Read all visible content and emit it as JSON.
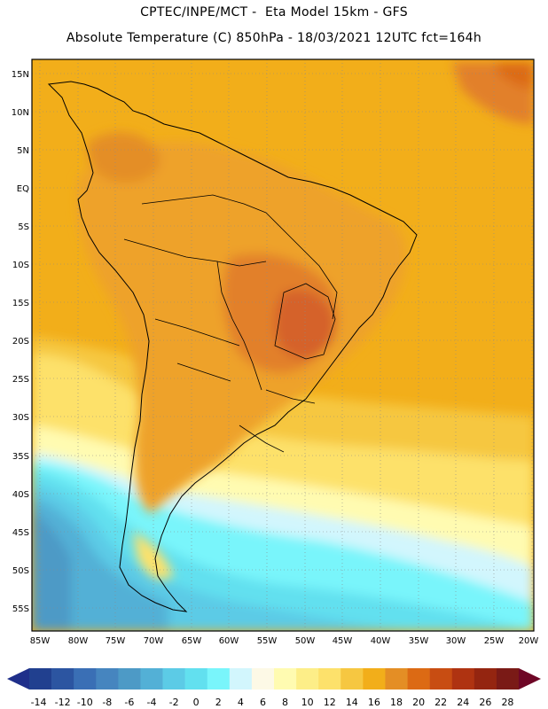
{
  "header": {
    "line1": "CPTEC/INPE/MCT -  Eta Model 15km - GFS",
    "line2": "Absolute Temperature (C) 850hPa - 18/03/2021 12UTC fct=164h"
  },
  "map": {
    "lat_labels": [
      "15N",
      "10N",
      "5N",
      "EQ",
      "5S",
      "10S",
      "15S",
      "20S",
      "25S",
      "30S",
      "35S",
      "40S",
      "45S",
      "50S",
      "55S"
    ],
    "lon_labels": [
      "85W",
      "80W",
      "75W",
      "70W",
      "65W",
      "60W",
      "55W",
      "50W",
      "45W",
      "40W",
      "35W",
      "30W",
      "25W",
      "20W"
    ],
    "colors": {
      "ocean_warm": "#f2ae1a",
      "land_warm": "#eea22a",
      "hot": "#e2802a",
      "hottest": "#d5622a"
    }
  },
  "colorbar": {
    "labels": [
      "-14",
      "-12",
      "-10",
      "-8",
      "-6",
      "-4",
      "-2",
      "0",
      "2",
      "4",
      "6",
      "8",
      "10",
      "12",
      "14",
      "16",
      "18",
      "20",
      "22",
      "24",
      "26",
      "28"
    ],
    "colors": [
      "#21408f",
      "#2c55a1",
      "#3a6fb5",
      "#4685bf",
      "#4d9ac6",
      "#53b0d6",
      "#5ccbe6",
      "#62e0ef",
      "#79f5fb",
      "#d2f6fd",
      "#fdf9e6",
      "#fffbb1",
      "#fdee88",
      "#fde16b",
      "#f6c741",
      "#f2ae1a",
      "#e48e25",
      "#dc6a14",
      "#c84d12",
      "#af3311",
      "#942510",
      "#7a1a16"
    ],
    "low_arrow": "#1f2f8a",
    "high_arrow": "#6e0626"
  }
}
